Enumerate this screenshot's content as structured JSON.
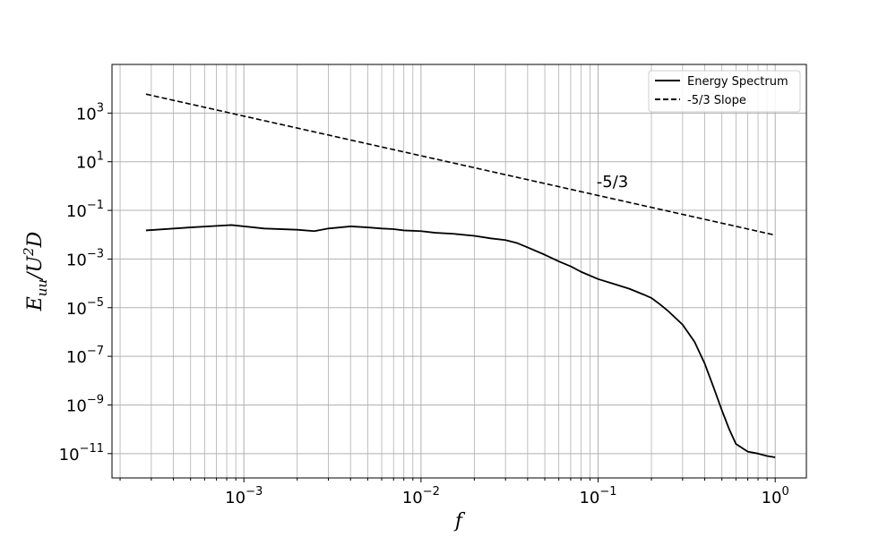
{
  "chart_data": {
    "type": "line",
    "xscale": "log",
    "yscale": "log",
    "xlim": [
      0.00018,
      1.5
    ],
    "ylim": [
      1e-12,
      100000.0
    ],
    "grid": "both",
    "xlabel": "f",
    "ylabel": "E_uu/U^2D",
    "x_ticks": [
      0.001,
      0.01,
      0.1,
      1
    ],
    "x_tick_labels": [
      {
        "base": "10",
        "exp": "−3"
      },
      {
        "base": "10",
        "exp": "−2"
      },
      {
        "base": "10",
        "exp": "−1"
      },
      {
        "base": "10",
        "exp": "0"
      }
    ],
    "y_ticks": [
      1000.0,
      10.0,
      0.1,
      0.001,
      1e-05,
      1e-07,
      1e-09,
      1e-11
    ],
    "y_tick_labels": [
      {
        "base": "10",
        "exp": "3"
      },
      {
        "base": "10",
        "exp": "1"
      },
      {
        "base": "10",
        "exp": "−1"
      },
      {
        "base": "10",
        "exp": "−3"
      },
      {
        "base": "10",
        "exp": "−5"
      },
      {
        "base": "10",
        "exp": "−7"
      },
      {
        "base": "10",
        "exp": "−9"
      },
      {
        "base": "10",
        "exp": "−11"
      }
    ],
    "legend_position": "top-right",
    "series": [
      {
        "name": "Energy Spectrum",
        "style": "solid",
        "color": "#000000",
        "x": [
          0.00028,
          0.0005,
          0.00085,
          0.0013,
          0.002,
          0.0025,
          0.003,
          0.0035,
          0.004,
          0.005,
          0.006,
          0.007,
          0.008,
          0.01,
          0.012,
          0.015,
          0.02,
          0.025,
          0.03,
          0.035,
          0.04,
          0.05,
          0.06,
          0.07,
          0.08,
          0.1,
          0.12,
          0.15,
          0.18,
          0.2,
          0.22,
          0.25,
          0.3,
          0.35,
          0.4,
          0.45,
          0.5,
          0.55,
          0.6,
          0.7,
          0.8,
          0.9,
          1.0
        ],
        "y": [
          0.015,
          0.02,
          0.025,
          0.018,
          0.016,
          0.014,
          0.018,
          0.02,
          0.022,
          0.02,
          0.018,
          0.017,
          0.015,
          0.014,
          0.012,
          0.011,
          0.009,
          0.007,
          0.006,
          0.0045,
          0.003,
          0.0015,
          0.0008,
          0.0005,
          0.0003,
          0.00015,
          0.0001,
          6e-05,
          3.5e-05,
          2.5e-05,
          1.5e-05,
          7e-06,
          2e-06,
          4e-07,
          5e-08,
          5e-09,
          6e-10,
          1e-10,
          2.5e-11,
          1.2e-11,
          1e-11,
          8e-12,
          7e-12
        ]
      },
      {
        "name": "-5/3 Slope",
        "style": "dashed",
        "color": "#000000",
        "x": [
          0.00028,
          1.0
        ],
        "y": [
          6000,
          0.0096
        ]
      }
    ],
    "annotations": [
      {
        "text": "-5/3",
        "x": 0.098,
        "y": 0.92
      }
    ]
  }
}
